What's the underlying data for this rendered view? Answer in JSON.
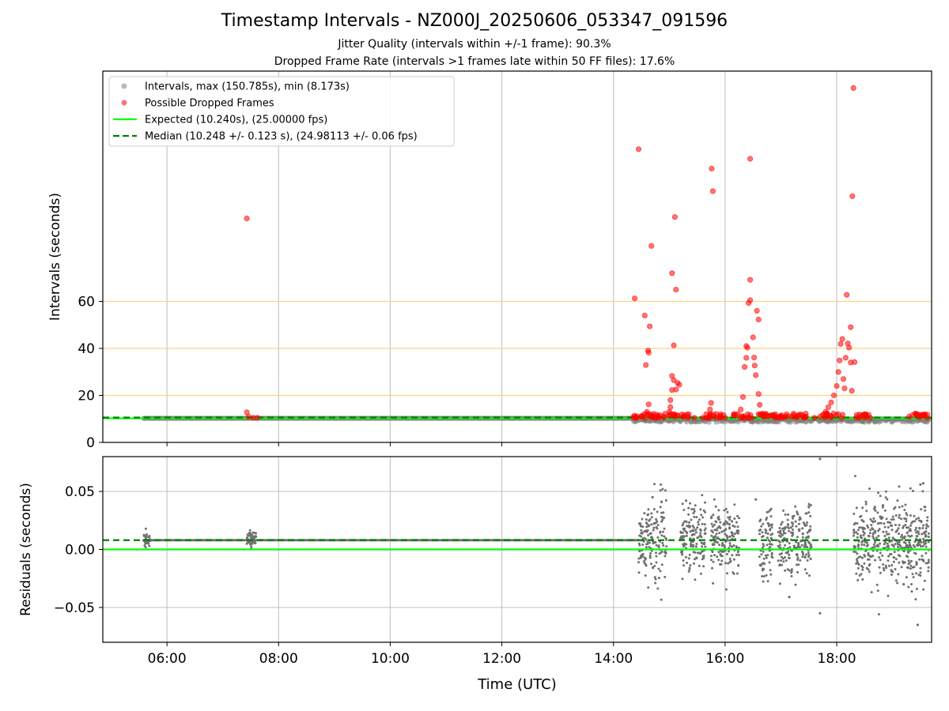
{
  "chart_data": [
    {
      "type": "scatter",
      "title": "Timestamp Intervals - NZ000J_20250606_053347_091596",
      "subtitle_lines": [
        "Jitter Quality (intervals within +/-1 frame): 90.3%",
        "Dropped Frame Rate (intervals >1 frames late within 50 FF files): 17.6%"
      ],
      "xlabel": "",
      "ylabel": "Intervals (seconds)",
      "xlim": [
        4.85,
        19.7
      ],
      "ylim": [
        0,
        158
      ],
      "yticks": [
        0,
        20,
        40,
        60
      ],
      "yticklabels": [
        "0",
        "20",
        "40",
        "60"
      ],
      "reference_lines": [
        {
          "y": 20,
          "color": "#ffd27f"
        },
        {
          "y": 40,
          "color": "#ffd27f"
        },
        {
          "y": 60,
          "color": "#ffd27f"
        }
      ],
      "expected_value": 10.24,
      "median_value": 10.248,
      "legend_position": "top-left",
      "legend": [
        "Intervals, max (150.785s), min (8.173s)",
        "Possible Dropped Frames",
        "Expected (10.240s), (25.00000 fps)",
        "Median (10.248 +/- 0.123 s), (24.98113 +/- 0.06 fps)"
      ],
      "series": [
        {
          "name": "Intervals",
          "color": "#808080",
          "x_range": [
            5.58,
            19.65
          ],
          "segments": [
            [
              5.58,
              7.65,
              10.248
            ],
            [
              7.65,
              14.35,
              10.248
            ],
            [
              14.35,
              19.65,
              10.0
            ]
          ]
        },
        {
          "name": "Possible Dropped Frames",
          "color": "#ff0000",
          "points": [
            [
              7.43,
              95.3
            ],
            [
              7.43,
              12.8
            ],
            [
              7.46,
              11.0
            ],
            [
              7.55,
              10.5
            ],
            [
              7.62,
              10.5
            ],
            [
              14.38,
              61.3
            ],
            [
              14.45,
              124.8
            ],
            [
              14.56,
              54.0
            ],
            [
              14.58,
              32.9
            ],
            [
              14.62,
              39.1
            ],
            [
              14.63,
              38.2
            ],
            [
              14.65,
              49.4
            ],
            [
              14.68,
              83.6
            ],
            [
              14.63,
              16.2
            ],
            [
              14.6,
              13.0
            ],
            [
              14.55,
              12.0
            ],
            [
              14.5,
              11.0
            ],
            [
              14.7,
              11.0
            ],
            [
              14.8,
              11.0
            ],
            [
              14.9,
              11.0
            ],
            [
              15.05,
              72.0
            ],
            [
              15.08,
              41.3
            ],
            [
              15.1,
              95.9
            ],
            [
              15.12,
              65.0
            ],
            [
              15.05,
              28.3
            ],
            [
              15.08,
              26.5
            ],
            [
              15.12,
              22.5
            ],
            [
              15.15,
              25.3
            ],
            [
              15.18,
              24.5
            ],
            [
              15.05,
              22.3
            ],
            [
              15.02,
              18.0
            ],
            [
              15.02,
              15.0
            ],
            [
              15.0,
              13.0
            ],
            [
              15.1,
              11.0
            ],
            [
              15.25,
              11.0
            ],
            [
              15.35,
              12.0
            ],
            [
              15.45,
              10.5
            ],
            [
              15.6,
              10.5
            ],
            [
              15.76,
              116.5
            ],
            [
              15.78,
              106.9
            ],
            [
              15.75,
              16.8
            ],
            [
              15.73,
              14.0
            ],
            [
              15.73,
              12.0
            ],
            [
              15.8,
              11.0
            ],
            [
              15.9,
              10.5
            ],
            [
              16.0,
              10.5
            ],
            [
              16.2,
              11.5
            ],
            [
              16.28,
              14.0
            ],
            [
              16.32,
              19.3
            ],
            [
              16.35,
              32.1
            ],
            [
              16.38,
              36.0
            ],
            [
              16.38,
              41.0
            ],
            [
              16.4,
              40.3
            ],
            [
              16.42,
              59.3
            ],
            [
              16.45,
              60.5
            ],
            [
              16.45,
              69.2
            ],
            [
              16.45,
              120.7
            ],
            [
              16.5,
              44.7
            ],
            [
              16.52,
              36.1
            ],
            [
              16.53,
              32.7
            ],
            [
              16.55,
              28.6
            ],
            [
              16.57,
              56.0
            ],
            [
              16.6,
              52.3
            ],
            [
              16.6,
              20.6
            ],
            [
              16.62,
              16.0
            ],
            [
              16.6,
              12.0
            ],
            [
              16.7,
              11.0
            ],
            [
              16.8,
              11.5
            ],
            [
              16.9,
              12.0
            ],
            [
              17.0,
              11.0
            ],
            [
              17.1,
              12.0
            ],
            [
              17.2,
              11.0
            ],
            [
              17.3,
              11.5
            ],
            [
              17.45,
              11.0
            ],
            [
              17.6,
              10.5
            ],
            [
              17.7,
              11.0
            ],
            [
              17.8,
              13.0
            ],
            [
              17.85,
              15.0
            ],
            [
              17.9,
              17.0
            ],
            [
              17.95,
              20.0
            ],
            [
              18.0,
              24.0
            ],
            [
              18.03,
              30.0
            ],
            [
              18.05,
              34.9
            ],
            [
              18.07,
              41.9
            ],
            [
              18.1,
              44.0
            ],
            [
              18.12,
              27.0
            ],
            [
              18.14,
              23.0
            ],
            [
              18.16,
              36.0
            ],
            [
              18.18,
              62.8
            ],
            [
              18.2,
              42.1
            ],
            [
              18.22,
              40.3
            ],
            [
              18.25,
              49.0
            ],
            [
              18.25,
              34.0
            ],
            [
              18.27,
              22.0
            ],
            [
              18.28,
              104.8
            ],
            [
              18.3,
              150.8
            ],
            [
              18.32,
              34.2
            ],
            [
              18.4,
              10.5
            ],
            [
              18.5,
              10.5
            ],
            [
              18.6,
              10.5
            ],
            [
              19.3,
              11.0
            ],
            [
              19.45,
              12.0
            ],
            [
              19.55,
              11.5
            ],
            [
              19.62,
              10.5
            ]
          ]
        },
        {
          "name": "Expected",
          "color": "#00ff00",
          "type": "hline",
          "y": 10.24
        },
        {
          "name": "Median",
          "color": "#008000",
          "type": "hline",
          "y": 10.248
        }
      ]
    },
    {
      "type": "scatter",
      "title": "",
      "xlabel": "Time (UTC)",
      "ylabel": "Residuals (seconds)",
      "xlim": [
        4.85,
        19.7
      ],
      "ylim": [
        -0.08,
        0.08
      ],
      "yticks": [
        -0.05,
        0.0,
        0.05
      ],
      "yticklabels": [
        "−0.05",
        "0.00",
        "0.05"
      ],
      "xticks": [
        6,
        8,
        10,
        12,
        14,
        16,
        18
      ],
      "xticklabels": [
        "06:00",
        "08:00",
        "10:00",
        "12:00",
        "14:00",
        "16:00",
        "18:00"
      ],
      "grid": true,
      "expected_residual": 0.0,
      "median_residual": 0.008,
      "series": [
        {
          "name": "Residuals",
          "color": "#707070",
          "clusters": [
            [
              5.58,
              5.7,
              0.008,
              0.003
            ],
            [
              7.43,
              7.6,
              0.008,
              0.004
            ],
            [
              14.45,
              14.95,
              0.008,
              0.018
            ],
            [
              15.2,
              15.65,
              0.008,
              0.016
            ],
            [
              15.75,
              16.25,
              0.008,
              0.015
            ],
            [
              16.6,
              16.85,
              0.006,
              0.015
            ],
            [
              16.95,
              17.55,
              0.006,
              0.015
            ],
            [
              18.3,
              19.65,
              0.008,
              0.017
            ]
          ],
          "outliers": [
            [
              17.7,
              0.078
            ],
            [
              17.7,
              -0.055
            ],
            [
              19.45,
              -0.065
            ],
            [
              19.5,
              0.056
            ],
            [
              19.55,
              0.057
            ],
            [
              17.15,
              -0.041
            ],
            [
              14.7,
              0.045
            ],
            [
              15.3,
              0.042
            ],
            [
              16.55,
              0.043
            ],
            [
              19.2,
              -0.03
            ]
          ]
        },
        {
          "name": "Expected",
          "color": "#00ff00",
          "type": "hline",
          "y": 0.0
        },
        {
          "name": "Median",
          "color": "#008000",
          "type": "hline",
          "y": 0.008
        }
      ]
    }
  ]
}
